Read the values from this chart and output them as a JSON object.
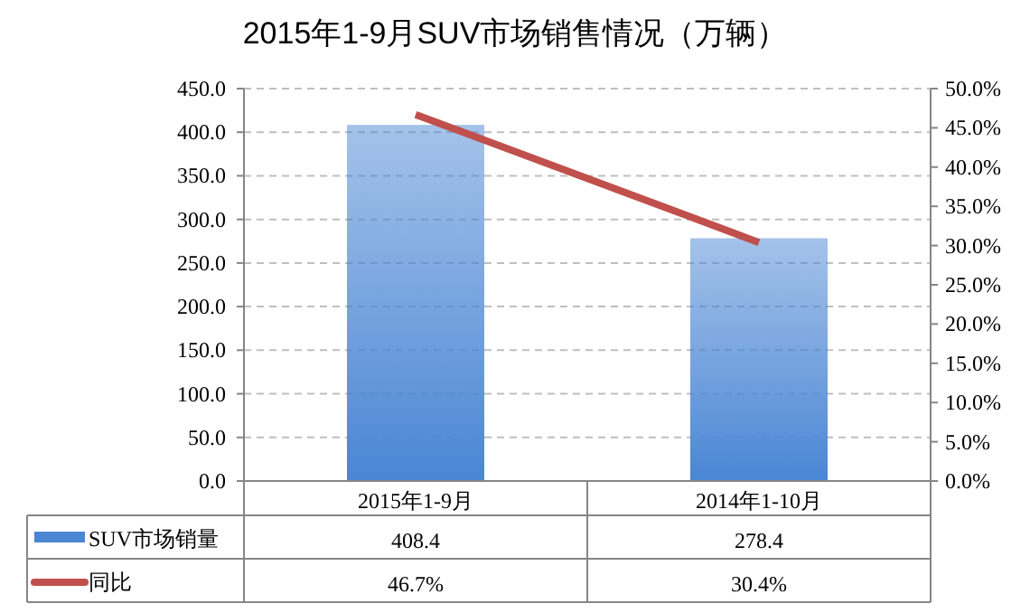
{
  "chart_data": {
    "type": "bar",
    "title": "2015年1-9月SUV市场销售情况（万辆）",
    "categories": [
      "2015年1-9月",
      "2014年1-10月"
    ],
    "series": [
      {
        "name": "SUV市场销量",
        "color": "#4a86d4",
        "values": [
          408.4,
          278.4
        ],
        "value_labels": [
          "408.4",
          "278.4"
        ]
      },
      {
        "name": "同比",
        "type": "line",
        "axis": "y2",
        "color": "#c0504d",
        "values": [
          46.7,
          30.4
        ],
        "value_labels": [
          "46.7%",
          "30.4%"
        ]
      }
    ],
    "ylim": [
      0,
      450
    ],
    "yticks": [
      {
        "value": 0,
        "label": "0.0"
      },
      {
        "value": 50,
        "label": "50.0"
      },
      {
        "value": 100,
        "label": "100.0"
      },
      {
        "value": 150,
        "label": "150.0"
      },
      {
        "value": 200,
        "label": "200.0"
      },
      {
        "value": 250,
        "label": "250.0"
      },
      {
        "value": 300,
        "label": "300.0"
      },
      {
        "value": 350,
        "label": "350.0"
      },
      {
        "value": 400,
        "label": "400.0"
      },
      {
        "value": 450,
        "label": "450.0"
      }
    ],
    "y2lim": [
      0,
      50
    ],
    "y2ticks": [
      {
        "value": 0,
        "label": "0.0%"
      },
      {
        "value": 5,
        "label": "5.0%"
      },
      {
        "value": 10,
        "label": "10.0%"
      },
      {
        "value": 15,
        "label": "15.0%"
      },
      {
        "value": 20,
        "label": "20.0%"
      },
      {
        "value": 25,
        "label": "25.0%"
      },
      {
        "value": 30,
        "label": "30.0%"
      },
      {
        "value": 35,
        "label": "35.0%"
      },
      {
        "value": 40,
        "label": "40.0%"
      },
      {
        "value": 45,
        "label": "45.0%"
      },
      {
        "value": 50,
        "label": "50.0%"
      }
    ],
    "grid": "y",
    "legend": "bottom left"
  }
}
